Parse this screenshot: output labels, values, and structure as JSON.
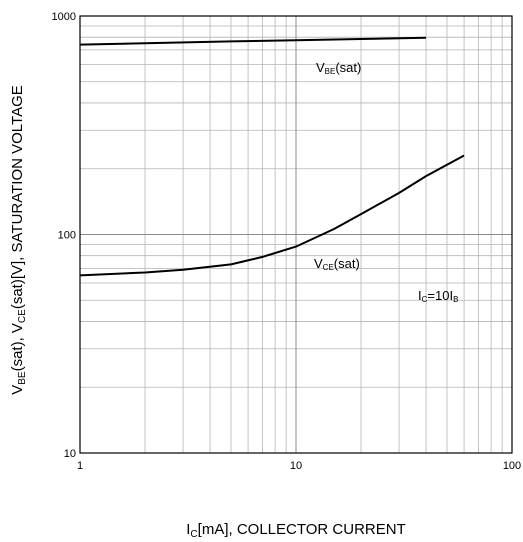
{
  "chart_data": {
    "type": "line",
    "x_scale": "log",
    "y_scale": "log",
    "xlim": [
      1,
      100
    ],
    "ylim": [
      10,
      1000
    ],
    "x_ticks": [
      1,
      10,
      100
    ],
    "x_tick_labels": [
      "1",
      "10",
      "100"
    ],
    "y_ticks": [
      10,
      100,
      1000
    ],
    "y_tick_labels": [
      "10",
      "100",
      "1000"
    ],
    "grid": true,
    "xlabel": {
      "parts": [
        {
          "text": "I",
          "sub": false
        },
        {
          "text": "C",
          "sub": true
        },
        {
          "text": "[mA], COLLECTOR CURRENT",
          "sub": false
        }
      ]
    },
    "ylabel": {
      "parts": [
        {
          "text": "V",
          "sub": false
        },
        {
          "text": "BE",
          "sub": true
        },
        {
          "text": "(sat), V",
          "sub": false
        },
        {
          "text": "CE",
          "sub": true
        },
        {
          "text": "(sat)[V], SATURATION VOLTAGE",
          "sub": false
        }
      ]
    },
    "series": [
      {
        "label_parts": [
          {
            "text": "V",
            "sub": false
          },
          {
            "text": "BE",
            "sub": true
          },
          {
            "text": "(sat)",
            "sub": false
          }
        ],
        "x": [
          1,
          2,
          5,
          10,
          20,
          40
        ],
        "y": [
          740,
          750,
          765,
          775,
          785,
          795
        ]
      },
      {
        "label_parts": [
          {
            "text": "V",
            "sub": false
          },
          {
            "text": "CE",
            "sub": true
          },
          {
            "text": "(sat)",
            "sub": false
          }
        ],
        "x": [
          1,
          2,
          3,
          5,
          7,
          10,
          15,
          20,
          30,
          40,
          60
        ],
        "y": [
          65,
          67,
          69,
          73,
          79,
          88,
          106,
          124,
          155,
          185,
          230
        ]
      }
    ],
    "annotation_parts": [
      {
        "text": "I",
        "sub": false
      },
      {
        "text": "C",
        "sub": true
      },
      {
        "text": "=10I",
        "sub": false
      },
      {
        "text": "B",
        "sub": true
      }
    ],
    "colors": {
      "line": "#000000",
      "grid": "#b4b4b4",
      "major_grid": "#8c8c8c"
    }
  }
}
